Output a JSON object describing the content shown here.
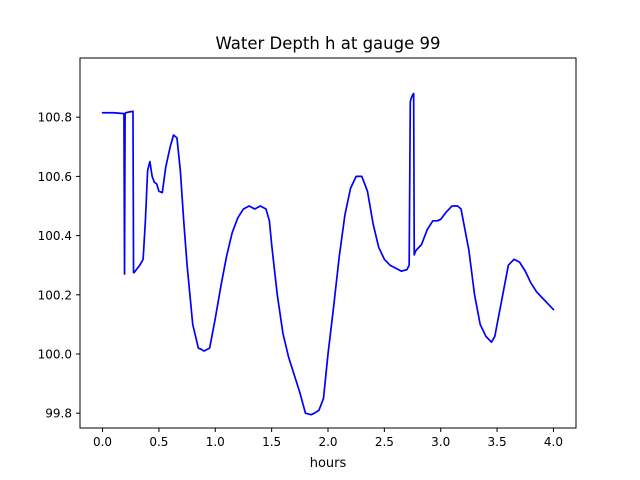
{
  "chart_data": {
    "type": "line",
    "title": "Water Depth h at gauge 99",
    "xlabel": "hours",
    "ylabel": "",
    "xlim": [
      -0.2,
      4.2
    ],
    "ylim": [
      99.75,
      101.0
    ],
    "xticks": [
      0.0,
      0.5,
      1.0,
      1.5,
      2.0,
      2.5,
      3.0,
      3.5,
      4.0
    ],
    "xtick_labels": [
      "0.0",
      "0.5",
      "1.0",
      "1.5",
      "2.0",
      "2.5",
      "3.0",
      "3.5",
      "4.0"
    ],
    "yticks": [
      99.8,
      100.0,
      100.2,
      100.4,
      100.6,
      100.8
    ],
    "ytick_labels": [
      "99.8",
      "100.0",
      "100.2",
      "100.4",
      "100.6",
      "100.8"
    ],
    "grid": false,
    "series": [
      {
        "color": "#0000ff",
        "x": [
          0.0,
          0.1,
          0.19,
          0.195,
          0.2,
          0.205,
          0.24,
          0.27,
          0.275,
          0.28,
          0.3,
          0.33,
          0.36,
          0.38,
          0.4,
          0.42,
          0.44,
          0.46,
          0.48,
          0.5,
          0.53,
          0.56,
          0.6,
          0.63,
          0.66,
          0.69,
          0.72,
          0.75,
          0.8,
          0.85,
          0.88,
          0.9,
          0.95,
          1.0,
          1.05,
          1.1,
          1.15,
          1.2,
          1.25,
          1.3,
          1.35,
          1.4,
          1.45,
          1.48,
          1.5,
          1.55,
          1.6,
          1.65,
          1.7,
          1.75,
          1.8,
          1.85,
          1.88,
          1.92,
          1.96,
          2.0,
          2.05,
          2.1,
          2.15,
          2.2,
          2.25,
          2.3,
          2.35,
          2.4,
          2.45,
          2.5,
          2.55,
          2.6,
          2.65,
          2.7,
          2.72,
          2.73,
          2.735,
          2.75,
          2.76,
          2.765,
          2.78,
          2.83,
          2.88,
          2.93,
          2.97,
          3.0,
          3.05,
          3.1,
          3.15,
          3.18,
          3.2,
          3.25,
          3.3,
          3.35,
          3.4,
          3.45,
          3.48,
          3.5,
          3.55,
          3.6,
          3.65,
          3.7,
          3.75,
          3.8,
          3.85,
          3.9,
          3.95,
          4.0
        ],
        "y": [
          100.815,
          100.815,
          100.812,
          100.27,
          100.812,
          100.815,
          100.818,
          100.82,
          100.275,
          100.275,
          100.285,
          100.3,
          100.32,
          100.45,
          100.62,
          100.65,
          100.6,
          100.58,
          100.575,
          100.55,
          100.545,
          100.63,
          100.7,
          100.74,
          100.73,
          100.62,
          100.45,
          100.3,
          100.1,
          100.02,
          100.015,
          100.01,
          100.02,
          100.12,
          100.23,
          100.33,
          100.41,
          100.46,
          100.49,
          100.5,
          100.49,
          100.5,
          100.49,
          100.45,
          100.37,
          100.2,
          100.07,
          99.99,
          99.93,
          99.87,
          99.8,
          99.795,
          99.8,
          99.81,
          99.85,
          100.0,
          100.16,
          100.33,
          100.47,
          100.56,
          100.6,
          100.6,
          100.55,
          100.44,
          100.36,
          100.32,
          100.3,
          100.29,
          100.28,
          100.285,
          100.3,
          100.85,
          100.86,
          100.875,
          100.88,
          100.335,
          100.35,
          100.37,
          100.42,
          100.45,
          100.45,
          100.455,
          100.48,
          100.5,
          100.5,
          100.49,
          100.45,
          100.35,
          100.2,
          100.1,
          100.06,
          100.04,
          100.06,
          100.1,
          100.2,
          100.3,
          100.32,
          100.31,
          100.28,
          100.24,
          100.21,
          100.19,
          100.17,
          100.15
        ]
      }
    ]
  }
}
